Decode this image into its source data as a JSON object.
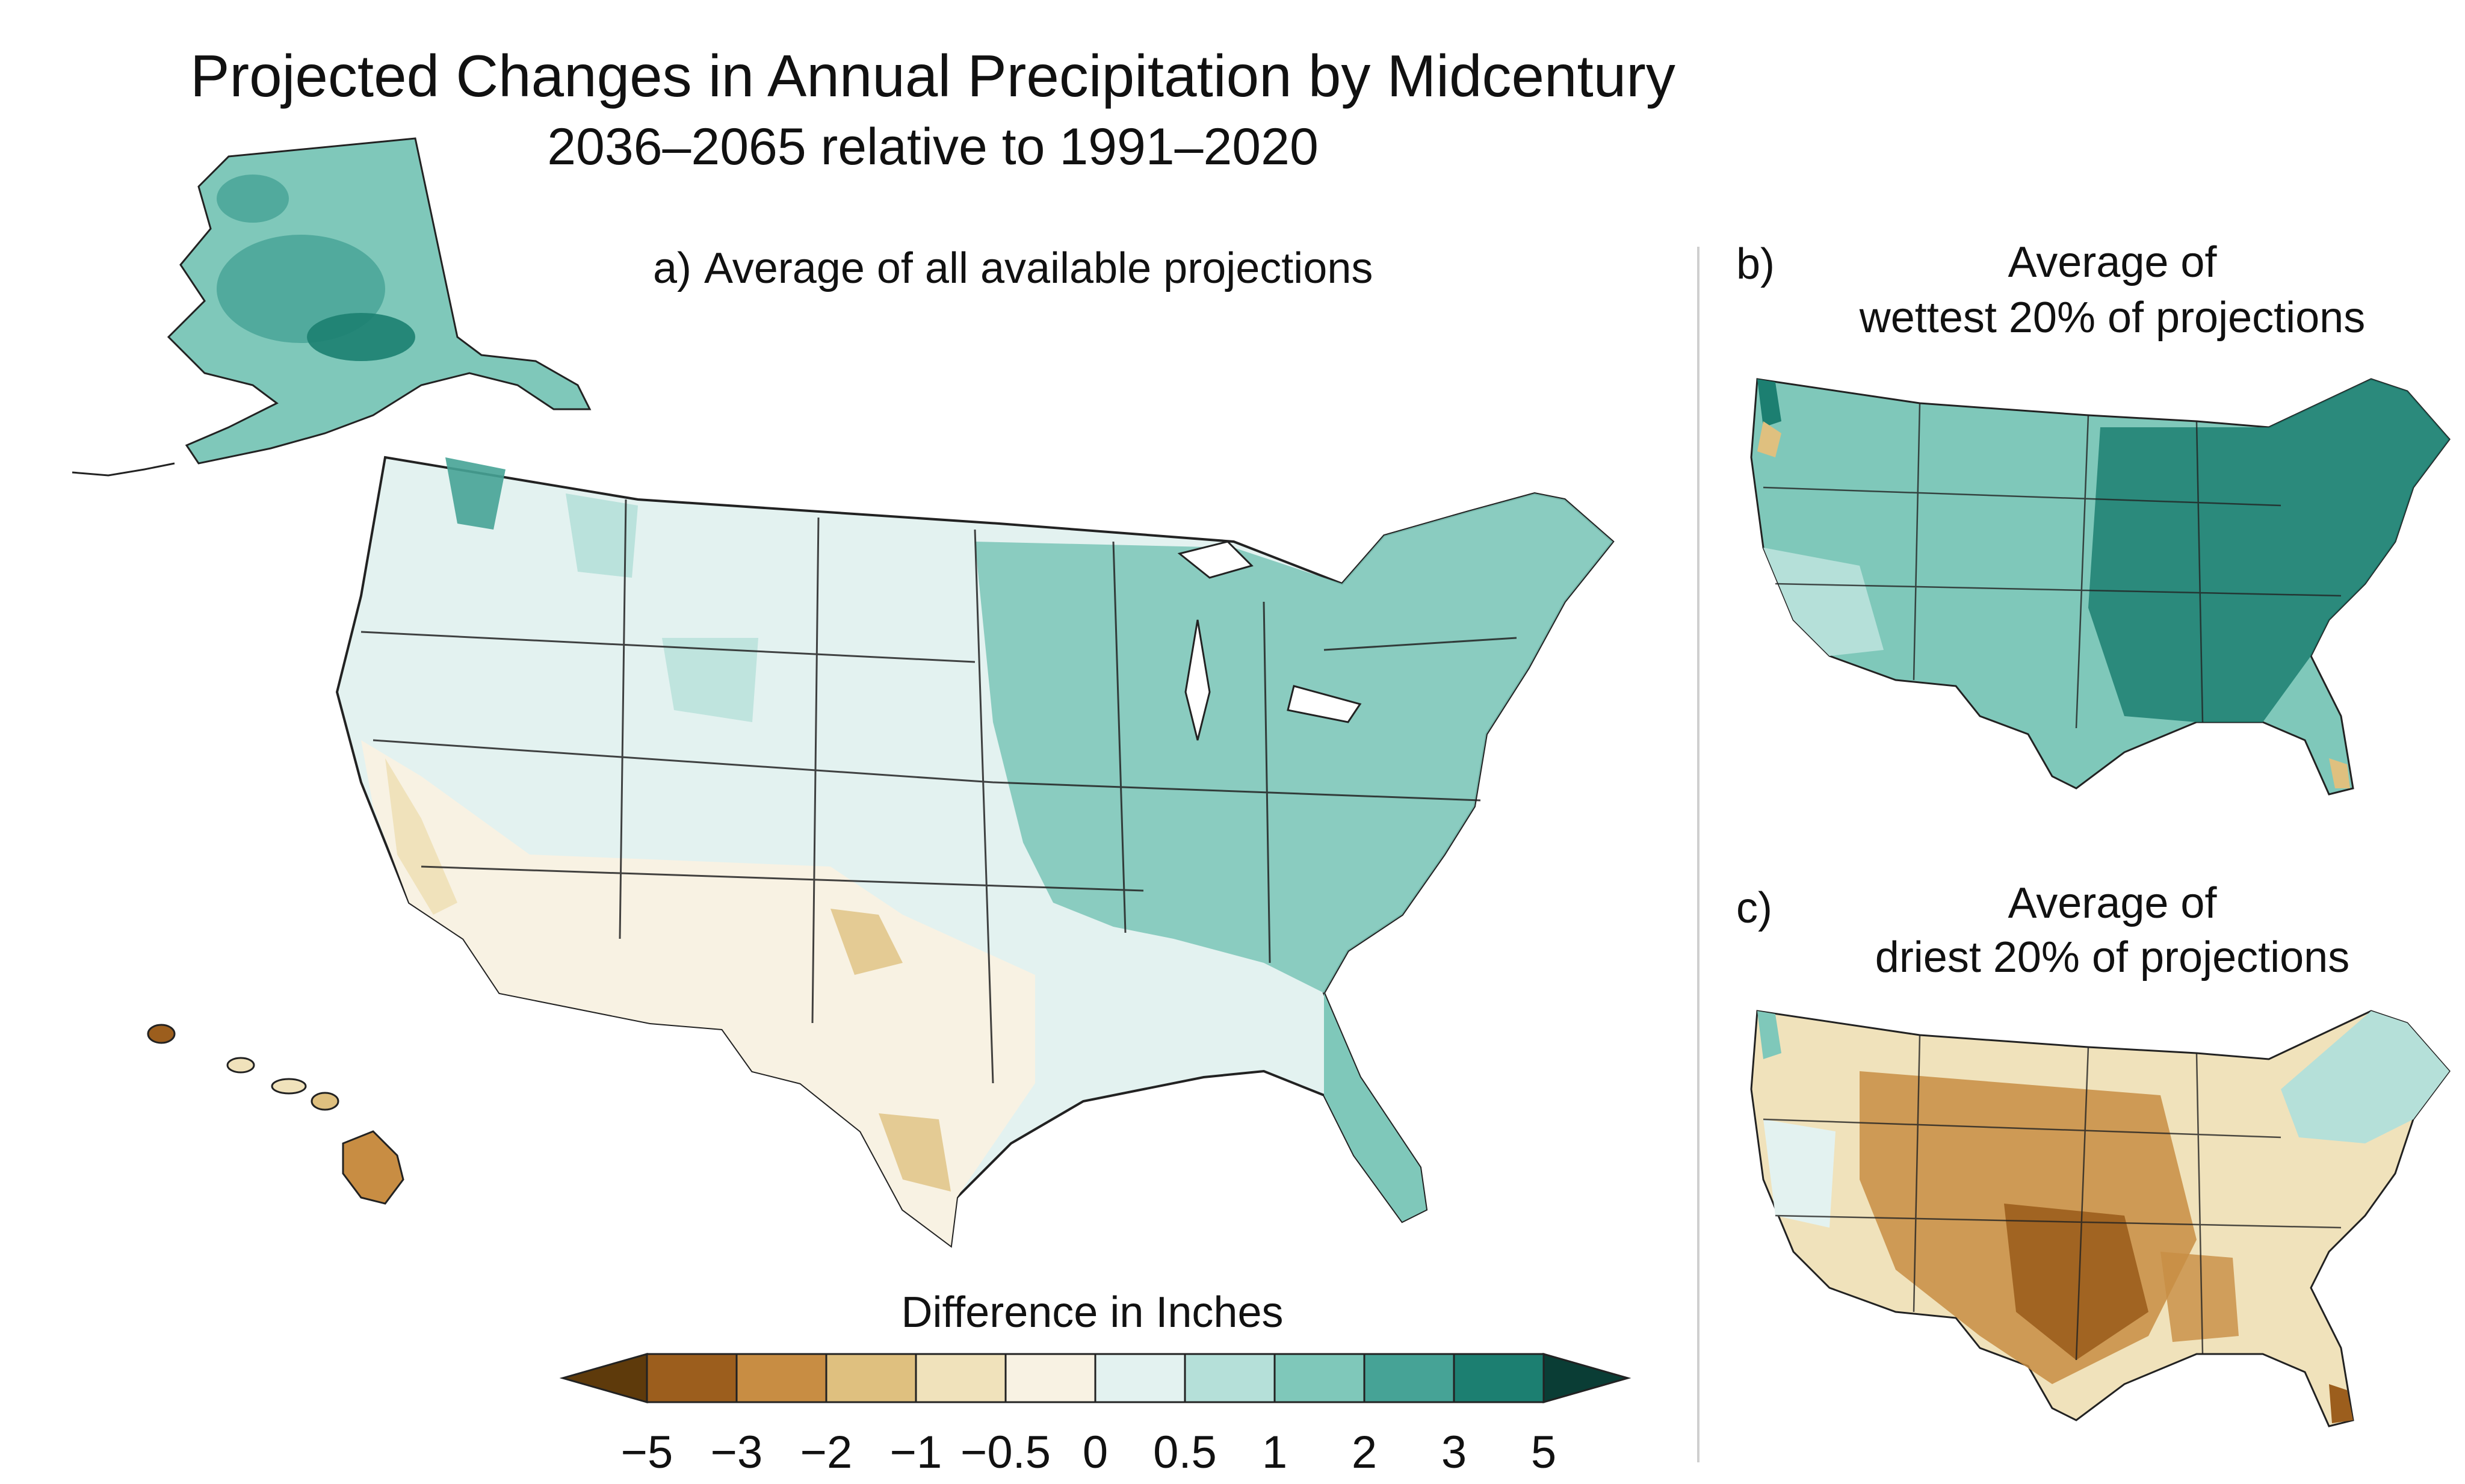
{
  "title": "Projected Changes in Annual Precipitation by Midcentury",
  "subtitle": "2036–2065 relative to 1991–2020",
  "panels": [
    {
      "label": "a)",
      "title": "Average of all available projections"
    },
    {
      "label": "b)",
      "title_line1": "Average of",
      "title_line2": "wettest 20% of projections"
    },
    {
      "label": "c)",
      "title_line1": "Average of",
      "title_line2": "driest 20% of projections"
    }
  ],
  "legend": {
    "title": "Difference in Inches",
    "ticks": [
      "−5",
      "−3",
      "−2",
      "−1",
      "−0.5",
      "0",
      "0.5",
      "1",
      "2",
      "3",
      "5"
    ],
    "colors": [
      "#5e3a0b",
      "#9c5e1d",
      "#c88d43",
      "#dfc07f",
      "#f0e2bb",
      "#f8f2e3",
      "#e3f2f0",
      "#b5e0d9",
      "#7fc8ba",
      "#46a396",
      "#1c7f71",
      "#0a3d35"
    ]
  }
}
